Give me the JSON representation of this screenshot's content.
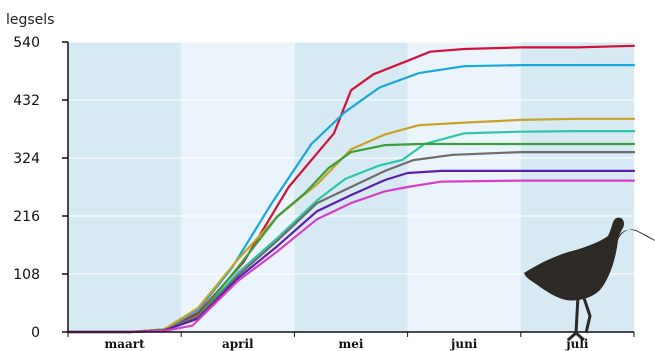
{
  "chart_data": {
    "type": "line",
    "ylabel": "legsels",
    "ylim": [
      0,
      540
    ],
    "yticks": [
      0,
      108,
      216,
      324,
      432,
      540
    ],
    "xlim": [
      0,
      5
    ],
    "months": [
      "maart",
      "april",
      "mei",
      "juni",
      "juli"
    ],
    "band_colors": [
      "#d7e9f2",
      "#eaf4fa"
    ],
    "series": [
      {
        "color": "#d1133a",
        "x": [
          0,
          0.55,
          0.85,
          1.15,
          1.55,
          1.95,
          2.35,
          2.5,
          2.7,
          3.0,
          3.2,
          3.5,
          4.0,
          4.5,
          5.0
        ],
        "y": [
          0,
          0,
          5,
          35,
          130,
          270,
          370,
          450,
          480,
          505,
          522,
          527,
          530,
          530,
          533
        ]
      },
      {
        "color": "#1aa7d9",
        "x": [
          0,
          0.55,
          0.85,
          1.15,
          1.45,
          1.8,
          2.15,
          2.45,
          2.75,
          3.1,
          3.5,
          4.0,
          4.5,
          5.0
        ],
        "y": [
          0,
          0,
          5,
          40,
          120,
          240,
          350,
          410,
          455,
          482,
          495,
          497,
          497,
          497
        ]
      },
      {
        "color": "#c9a228",
        "x": [
          0,
          0.55,
          0.85,
          1.15,
          1.5,
          1.85,
          2.2,
          2.5,
          2.8,
          3.1,
          3.5,
          4.0,
          4.5,
          5.0
        ],
        "y": [
          0,
          0,
          5,
          45,
          135,
          215,
          275,
          340,
          368,
          385,
          390,
          395,
          397,
          397
        ]
      },
      {
        "color": "#2dc7a8",
        "x": [
          0,
          0.55,
          0.85,
          1.15,
          1.5,
          1.85,
          2.2,
          2.45,
          2.75,
          2.95,
          3.15,
          3.5,
          4.0,
          4.5,
          5.0
        ],
        "y": [
          0,
          0,
          3,
          28,
          110,
          175,
          245,
          285,
          310,
          320,
          350,
          370,
          373,
          374,
          374
        ]
      },
      {
        "color": "#3c9e3c",
        "x": [
          0,
          0.55,
          0.85,
          1.15,
          1.5,
          1.85,
          2.1,
          2.3,
          2.5,
          2.8,
          3.1,
          4.0,
          5.0
        ],
        "y": [
          0,
          0,
          3,
          30,
          120,
          215,
          260,
          305,
          335,
          348,
          350,
          350,
          350
        ]
      },
      {
        "color": "#6d6d6d",
        "x": [
          0,
          0.55,
          0.85,
          1.15,
          1.5,
          1.85,
          2.2,
          2.5,
          2.8,
          3.05,
          3.4,
          4.0,
          5.0
        ],
        "y": [
          0,
          0,
          3,
          28,
          105,
          170,
          240,
          270,
          300,
          320,
          330,
          335,
          335
        ]
      },
      {
        "color": "#5b1fb0",
        "x": [
          0,
          0.55,
          0.85,
          1.15,
          1.5,
          1.85,
          2.2,
          2.5,
          2.8,
          3.0,
          3.3,
          4.0,
          5.0
        ],
        "y": [
          0,
          0,
          3,
          25,
          100,
          160,
          225,
          255,
          283,
          296,
          300,
          300,
          300
        ]
      },
      {
        "color": "#d640c8",
        "x": [
          0,
          0.55,
          0.85,
          1.1,
          1.5,
          1.85,
          2.2,
          2.5,
          2.8,
          3.0,
          3.3,
          4.0,
          5.0
        ],
        "y": [
          0,
          0,
          2,
          12,
          95,
          150,
          210,
          240,
          262,
          270,
          280,
          282,
          282
        ]
      }
    ]
  }
}
